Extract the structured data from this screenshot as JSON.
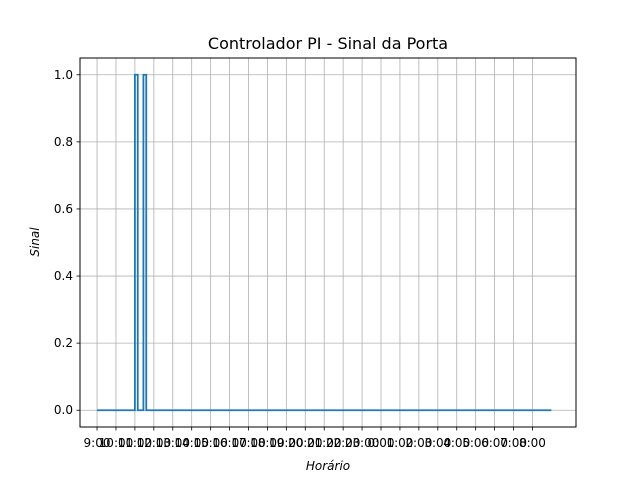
{
  "chart_data": {
    "type": "line",
    "title": "Controlador PI - Sinal da Porta",
    "xlabel": "Horário",
    "ylabel": "Sinal",
    "x_tick_labels": [
      "9:00",
      "10:00",
      "11:00",
      "12:00",
      "13:00",
      "14:00",
      "15:00",
      "16:00",
      "17:00",
      "18:00",
      "19:00",
      "20:00",
      "21:00",
      "22:00",
      "23:00",
      "0:00",
      "1:00",
      "2:00",
      "3:00",
      "4:00",
      "5:00",
      "6:00",
      "7:00",
      "8:00"
    ],
    "yticks": [
      0.0,
      0.2,
      0.4,
      0.6,
      0.8,
      1.0
    ],
    "ylim": [
      -0.05,
      1.05
    ],
    "xlim": [
      -0.9,
      25.3
    ],
    "grid": true,
    "line_color": "#1f77b4",
    "series": [
      {
        "x": [
          0,
          2.0,
          2.0,
          2.15,
          2.15,
          2.45,
          2.45,
          2.6,
          2.6,
          24.0
        ],
        "y": [
          0,
          0,
          1,
          1,
          0,
          0,
          1,
          1,
          0,
          0
        ]
      }
    ]
  }
}
